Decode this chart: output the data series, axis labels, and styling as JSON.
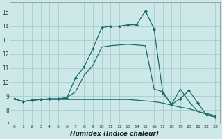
{
  "xlabel": "Humidex (Indice chaleur)",
  "background_color": "#cce8e8",
  "grid_color": "#aacccc",
  "line_color": "#1a6b6b",
  "xlim": [
    -0.5,
    23.5
  ],
  "ylim": [
    7.0,
    15.7
  ],
  "yticks": [
    7,
    8,
    9,
    10,
    11,
    12,
    13,
    14,
    15
  ],
  "xticks": [
    0,
    1,
    2,
    3,
    4,
    5,
    6,
    7,
    8,
    9,
    10,
    11,
    12,
    13,
    14,
    15,
    16,
    17,
    18,
    19,
    20,
    21,
    22,
    23
  ],
  "series": [
    {
      "x": [
        0,
        1,
        2,
        3,
        4,
        5,
        6,
        7,
        8,
        9,
        10,
        11,
        12,
        13,
        14,
        15,
        16,
        17,
        18,
        19,
        20,
        21,
        22,
        23
      ],
      "y": [
        8.8,
        8.6,
        8.7,
        8.75,
        8.75,
        8.75,
        8.75,
        8.75,
        8.75,
        8.75,
        8.75,
        8.75,
        8.75,
        8.75,
        8.7,
        8.65,
        8.6,
        8.5,
        8.35,
        8.2,
        8.1,
        7.9,
        7.75,
        7.6
      ],
      "marker": null,
      "lw": 0.9
    },
    {
      "x": [
        0,
        1,
        2,
        3,
        4,
        5,
        6,
        7,
        8,
        9,
        10,
        11,
        12,
        13,
        14,
        15,
        16,
        17,
        18,
        19,
        20,
        21,
        22,
        23
      ],
      "y": [
        8.8,
        8.6,
        8.7,
        8.75,
        8.8,
        8.8,
        8.85,
        10.3,
        11.1,
        12.4,
        13.9,
        14.0,
        14.0,
        14.1,
        14.1,
        15.1,
        13.8,
        9.2,
        8.4,
        8.8,
        9.4,
        8.5,
        7.65,
        7.5
      ],
      "marker": "D",
      "lw": 0.9
    },
    {
      "x": [
        0,
        1,
        2,
        3,
        4,
        5,
        6,
        7,
        8,
        9,
        10,
        11,
        12,
        13,
        14,
        15,
        16,
        17,
        18,
        19,
        20,
        21,
        22,
        23
      ],
      "y": [
        8.8,
        8.6,
        8.7,
        8.75,
        8.8,
        8.8,
        8.9,
        9.3,
        10.5,
        11.2,
        12.5,
        12.6,
        12.65,
        12.7,
        12.65,
        12.6,
        9.5,
        9.3,
        8.4,
        9.5,
        8.6,
        7.9,
        7.7,
        7.5
      ],
      "marker": null,
      "lw": 0.9
    }
  ]
}
